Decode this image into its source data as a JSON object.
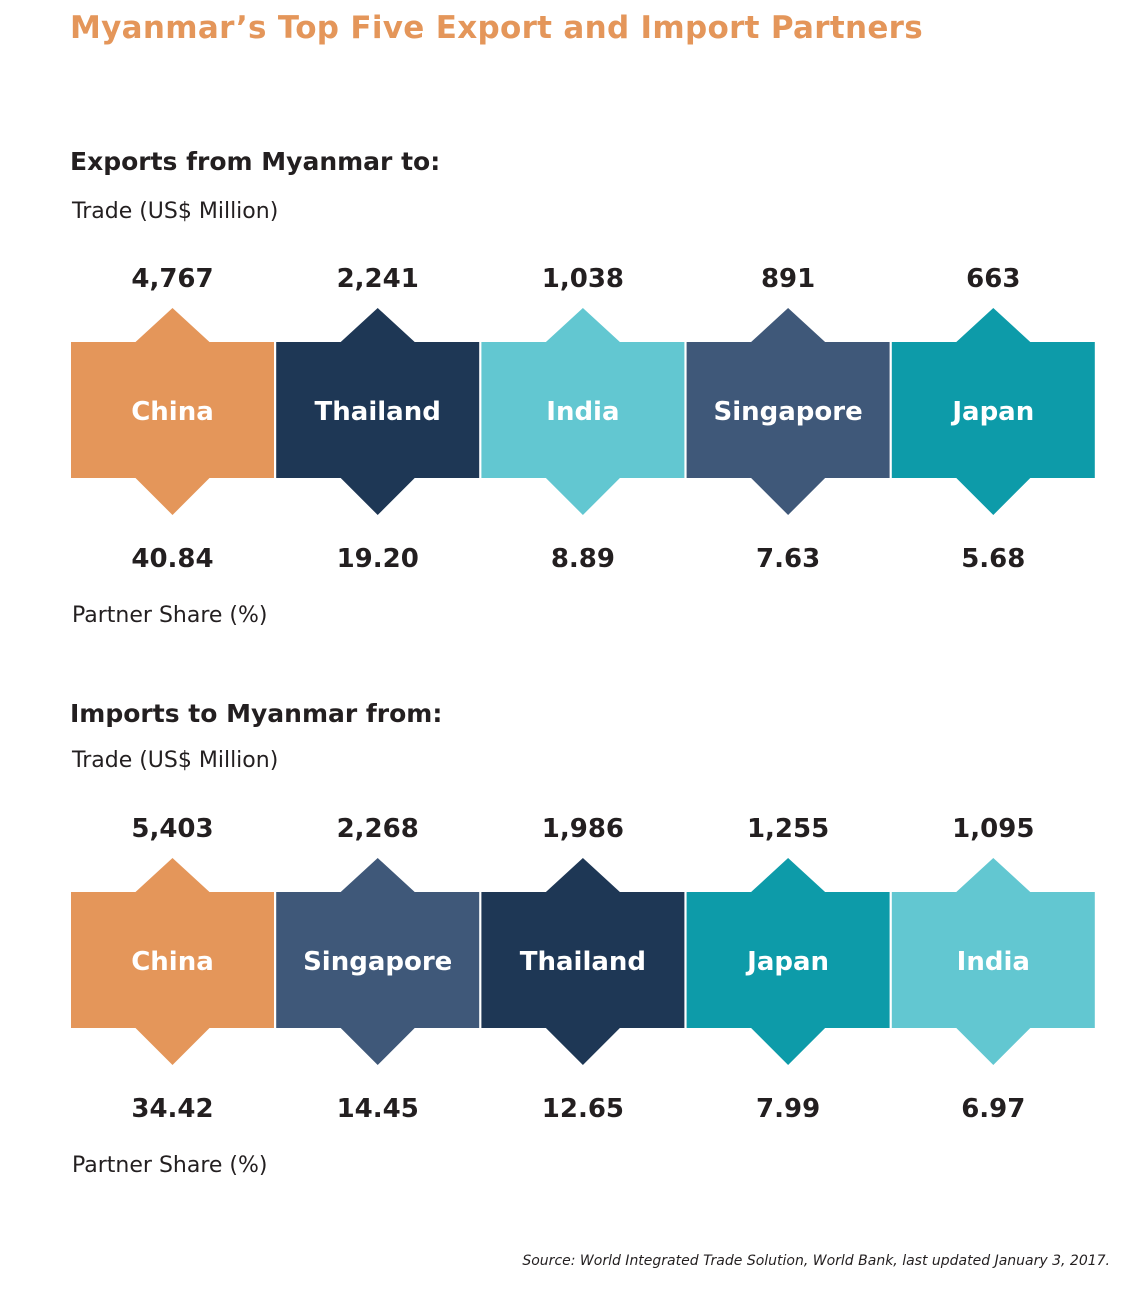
{
  "title": "Myanmar’s Top Five Export and Import Partners",
  "source": "Source: World Integrated Trade Solution, World Bank, last updated January 3, 2017.",
  "colors": {
    "title": "#e4965a",
    "china": "#e4965a",
    "thailand": "#1e3755",
    "india": "#62c7d1",
    "singapore": "#3f5879",
    "japan": "#0d9ba9"
  },
  "chart_data": [
    {
      "type": "table",
      "title": "Exports from Myanmar to:",
      "trade_label": "Trade (US$ Million)",
      "share_label": "Partner Share (%)",
      "categories": [
        "China",
        "Thailand",
        "India",
        "Singapore",
        "Japan"
      ],
      "colors": [
        "#e4965a",
        "#1e3755",
        "#62c7d1",
        "#3f5879",
        "#0d9ba9"
      ],
      "trade_values": [
        "4,767",
        "2,241",
        "1,038",
        "891",
        "663"
      ],
      "share_values": [
        "40.84",
        "19.20",
        "8.89",
        "7.63",
        "5.68"
      ]
    },
    {
      "type": "table",
      "title": "Imports to Myanmar from:",
      "trade_label": "Trade (US$ Million)",
      "share_label": "Partner Share (%)",
      "categories": [
        "China",
        "Singapore",
        "Thailand",
        "Japan",
        "India"
      ],
      "colors": [
        "#e4965a",
        "#3f5879",
        "#1e3755",
        "#0d9ba9",
        "#62c7d1"
      ],
      "trade_values": [
        "5,403",
        "2,268",
        "1,986",
        "1,255",
        "1,095"
      ],
      "share_values": [
        "34.42",
        "14.45",
        "12.65",
        "7.99",
        "6.97"
      ]
    }
  ]
}
